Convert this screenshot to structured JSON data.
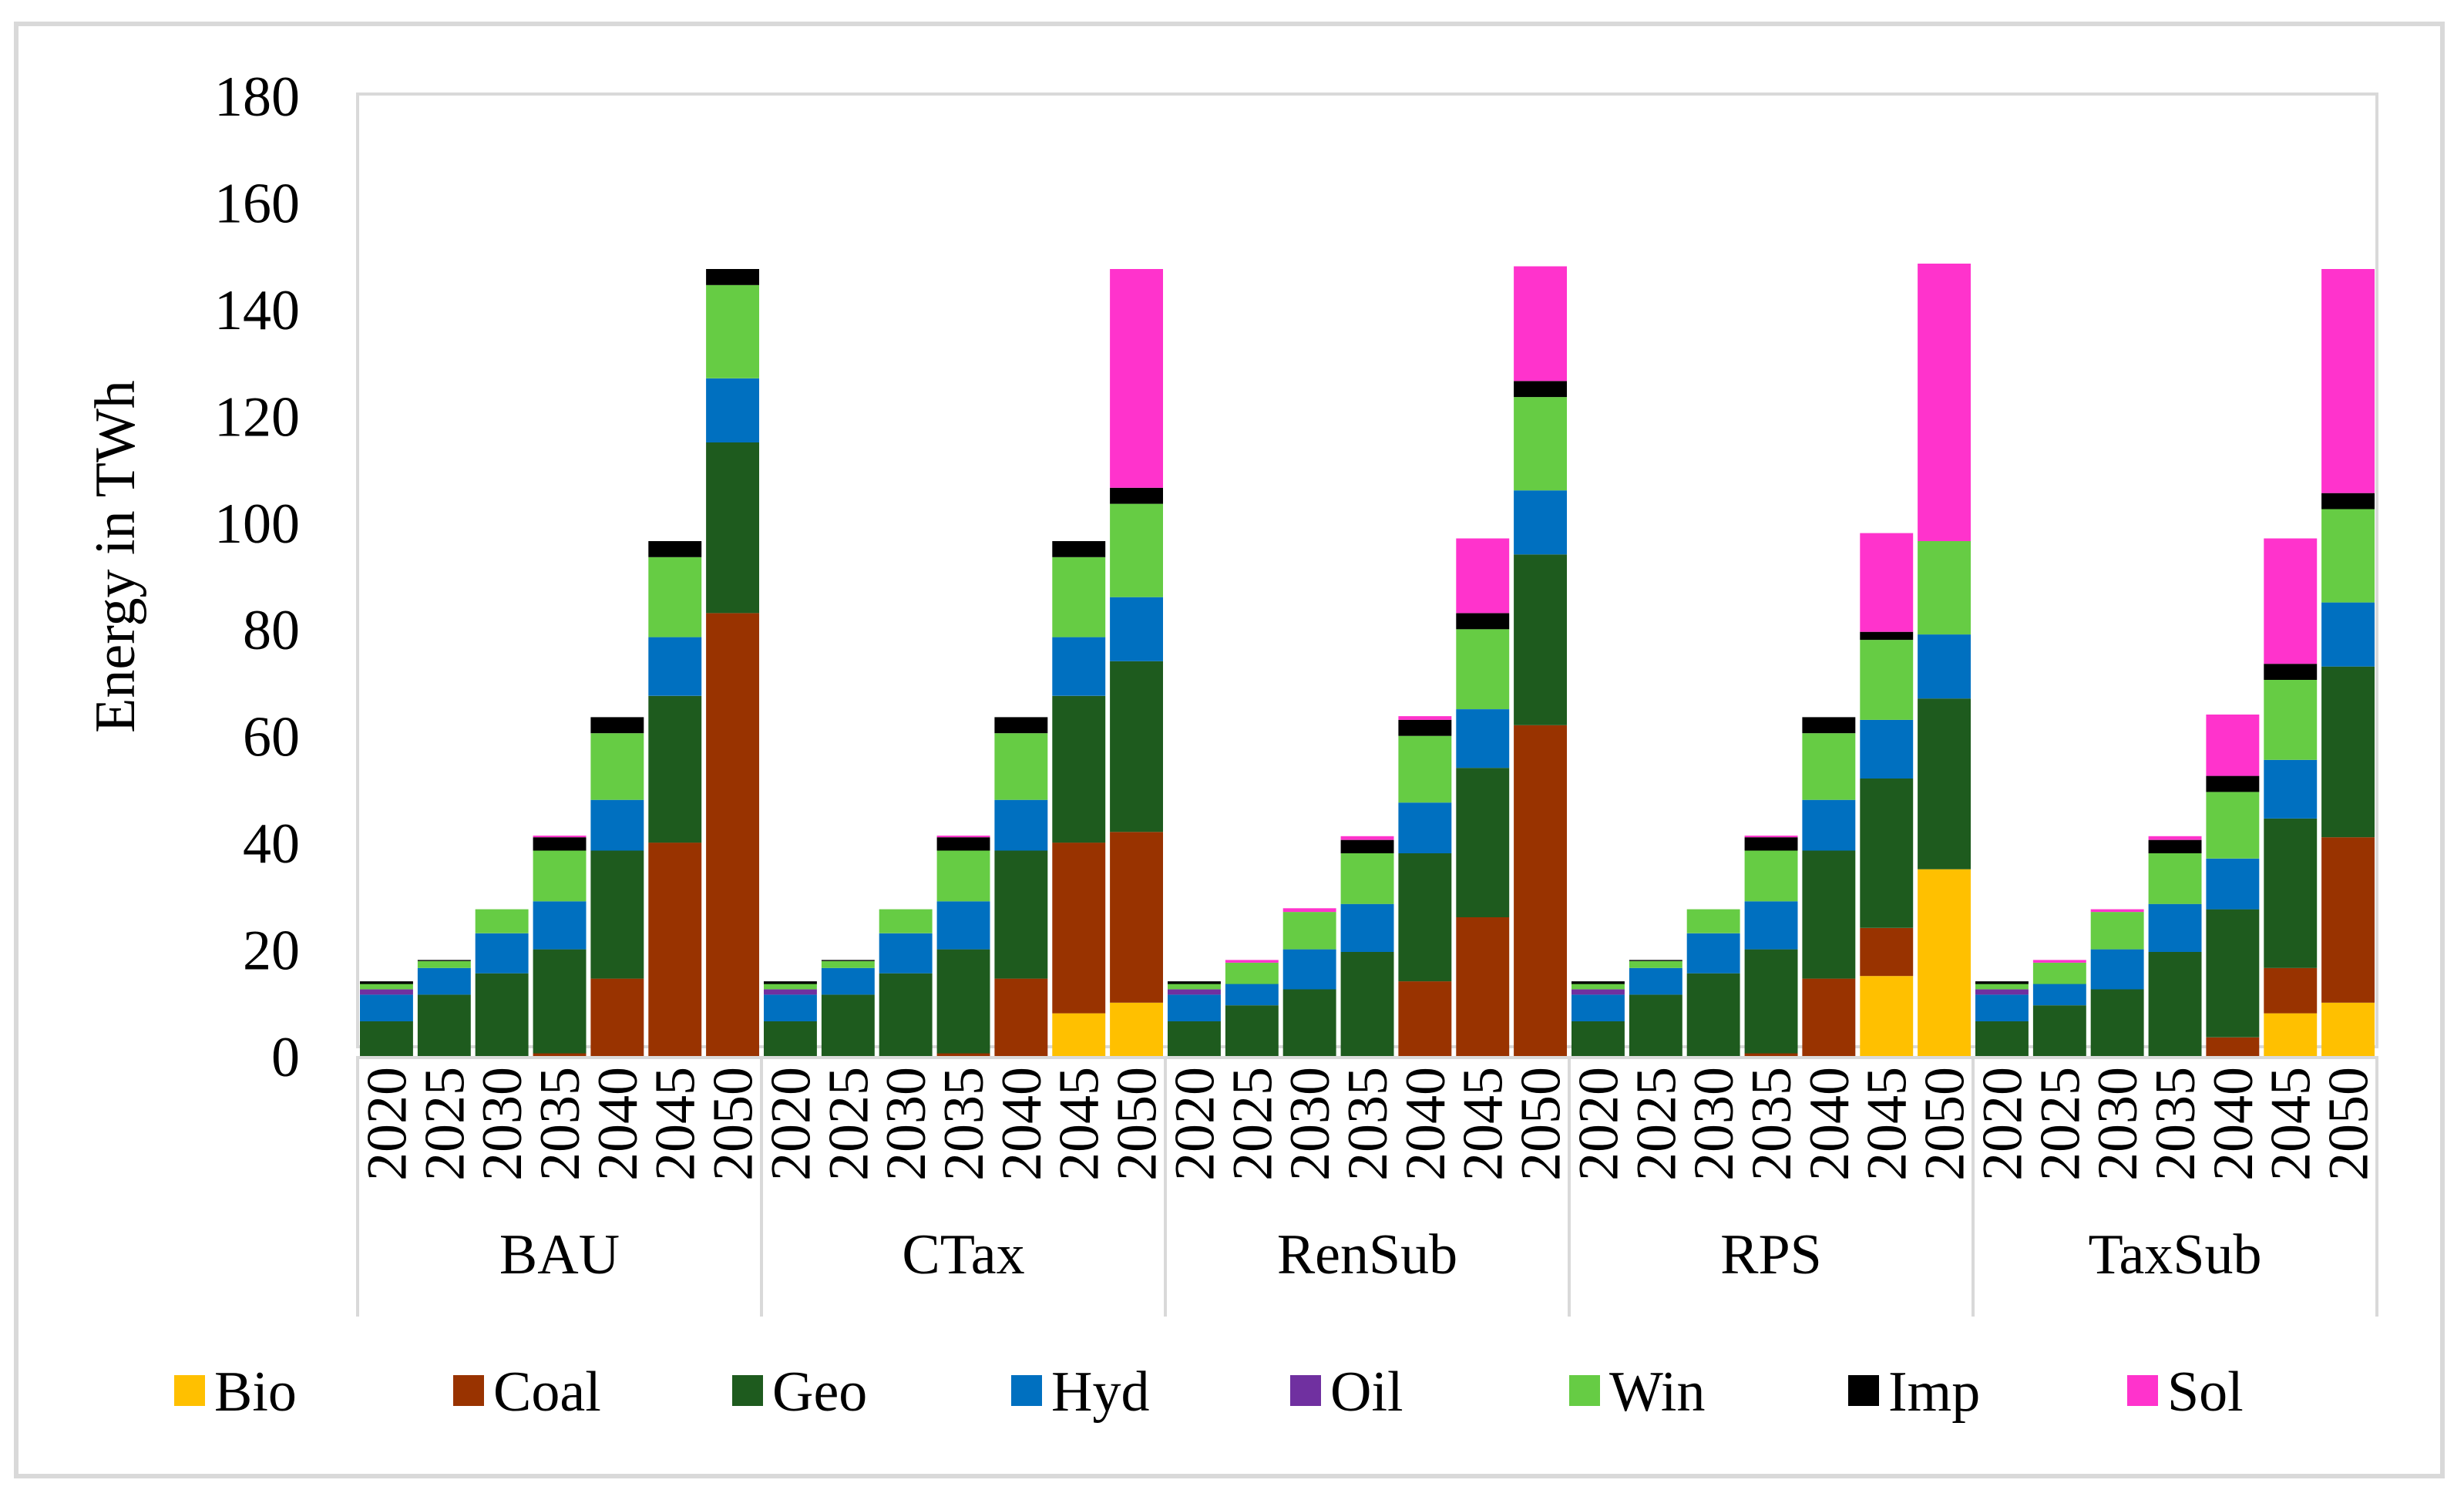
{
  "chart_data": {
    "type": "bar",
    "stacked": true,
    "title": "",
    "xlabel": "",
    "ylabel": "Energy in TWh",
    "ylim": [
      0,
      180
    ],
    "yticks": [
      0,
      20,
      40,
      60,
      80,
      100,
      120,
      140,
      160,
      180
    ],
    "grid": false,
    "legend_position": "bottom",
    "groups": [
      "BAU",
      "CTax",
      "RenSub",
      "RPS",
      "TaxSub"
    ],
    "years": [
      "2020",
      "2025",
      "2030",
      "2035",
      "2040",
      "2045",
      "2050"
    ],
    "colors": {
      "Bio": "#ffc000",
      "Coal": "#993300",
      "Geo": "#1e5b1e",
      "Hyd": "#0070c0",
      "Oil": "#7030a0",
      "Win": "#66cc44",
      "Imp": "#000000",
      "Sol": "#ff33cc"
    },
    "series": [
      {
        "name": "Bio",
        "values": [
          [
            0,
            0,
            0,
            0,
            0,
            0,
            0
          ],
          [
            0,
            0,
            0,
            0,
            0,
            8,
            10
          ],
          [
            0,
            0,
            0,
            0,
            0,
            0,
            0
          ],
          [
            0,
            0,
            0,
            0,
            0,
            15,
            35
          ],
          [
            0,
            0,
            0,
            0,
            0,
            8,
            10
          ]
        ]
      },
      {
        "name": "Coal",
        "values": [
          [
            0,
            0,
            0,
            0.5,
            14.5,
            40,
            83
          ],
          [
            0,
            0,
            0,
            0.5,
            14.5,
            32,
            32
          ],
          [
            0,
            0,
            0,
            0,
            14,
            26,
            62
          ],
          [
            0,
            0,
            0,
            0.5,
            14.5,
            9,
            0
          ],
          [
            0,
            0,
            0,
            0,
            3.5,
            8.5,
            31
          ]
        ]
      },
      {
        "name": "Geo",
        "values": [
          [
            6.5,
            11.5,
            15.5,
            19.5,
            24,
            27.5,
            32
          ],
          [
            6.5,
            11.5,
            15.5,
            19.5,
            24,
            27.5,
            32
          ],
          [
            6.5,
            9.5,
            12.5,
            19.5,
            24,
            28,
            32
          ],
          [
            6.5,
            11.5,
            15.5,
            19.5,
            24,
            28,
            32
          ],
          [
            6.5,
            9.5,
            12.5,
            19.5,
            24,
            28,
            32
          ]
        ]
      },
      {
        "name": "Hyd",
        "values": [
          [
            5,
            5,
            7.5,
            9,
            9.5,
            11,
            12
          ],
          [
            5,
            5,
            7.5,
            9,
            9.5,
            11,
            12
          ],
          [
            5,
            4,
            7.5,
            9,
            9.5,
            11,
            12
          ],
          [
            5,
            5,
            7.5,
            9,
            9.5,
            11,
            12
          ],
          [
            5,
            4,
            7.5,
            9,
            9.5,
            11,
            12
          ]
        ]
      },
      {
        "name": "Oil",
        "values": [
          [
            1,
            0,
            0,
            0,
            0,
            0,
            0
          ],
          [
            1,
            0,
            0,
            0,
            0,
            0,
            0
          ],
          [
            1,
            0,
            0,
            0,
            0,
            0,
            0
          ],
          [
            1,
            0,
            0,
            0,
            0,
            0,
            0
          ],
          [
            1,
            0,
            0,
            0,
            0,
            0,
            0
          ]
        ]
      },
      {
        "name": "Win",
        "values": [
          [
            1,
            1.3,
            4.5,
            9.5,
            12.5,
            15,
            17.5
          ],
          [
            1,
            1.3,
            4.5,
            9.5,
            12.5,
            15,
            17.5
          ],
          [
            1,
            4,
            7,
            9.5,
            12.5,
            15,
            17.5
          ],
          [
            1,
            1.3,
            4.5,
            9.5,
            12.5,
            15,
            17.5
          ],
          [
            1,
            4,
            7,
            9.5,
            12.5,
            15,
            17.5
          ]
        ]
      },
      {
        "name": "Imp",
        "values": [
          [
            0.5,
            0.2,
            0,
            2.5,
            3,
            3,
            3
          ],
          [
            0.5,
            0.2,
            0,
            2.5,
            3,
            3,
            3
          ],
          [
            0.5,
            0,
            0,
            2.5,
            3,
            3,
            3
          ],
          [
            0.5,
            0.2,
            0,
            2.5,
            3,
            1.5,
            0
          ],
          [
            0.5,
            0,
            0,
            2.5,
            3,
            3,
            3
          ]
        ]
      },
      {
        "name": "Sol",
        "values": [
          [
            0,
            0,
            0,
            0.3,
            0,
            0,
            0
          ],
          [
            0,
            0,
            0,
            0.3,
            0,
            0,
            41
          ],
          [
            0,
            0.5,
            0.7,
            0.7,
            0.7,
            14,
            21.5
          ],
          [
            0,
            0,
            0,
            0.3,
            0,
            18.5,
            52
          ],
          [
            0,
            0.5,
            0.5,
            0.7,
            11.5,
            23.5,
            42
          ]
        ]
      }
    ]
  }
}
